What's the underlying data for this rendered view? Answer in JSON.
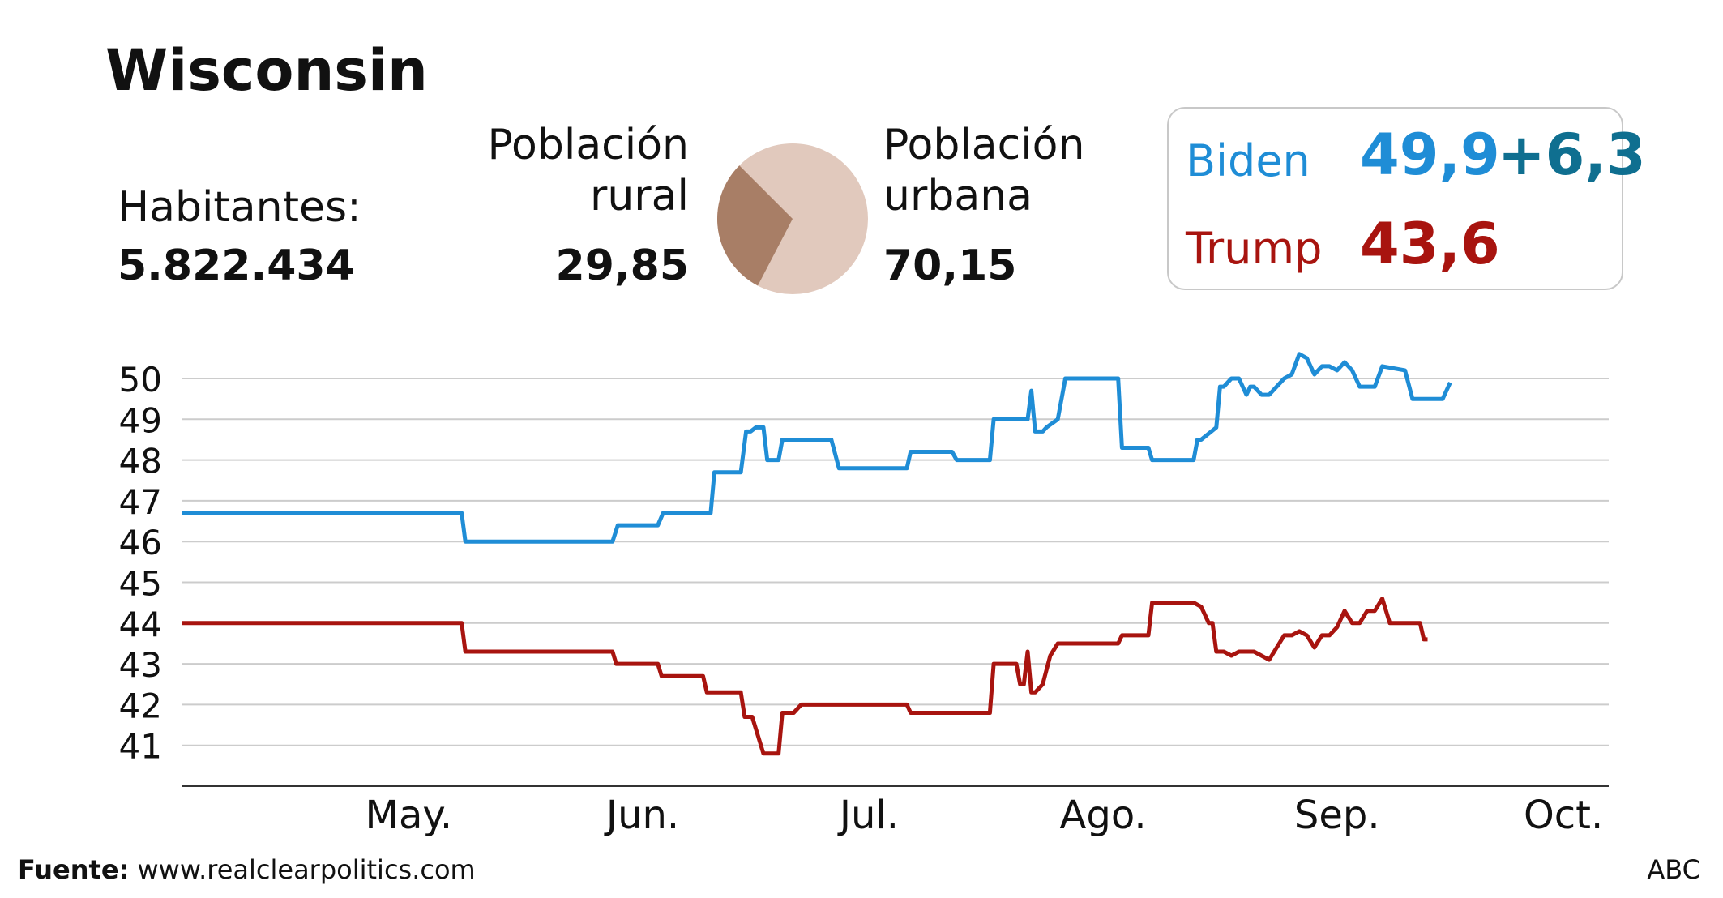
{
  "title": "Wisconsin",
  "habitantes": {
    "label": "Habitantes:",
    "value": "5.822.434"
  },
  "poblacion_rural": {
    "label_line1": "Población",
    "label_line2": "rural",
    "value": "29,85"
  },
  "poblacion_urbana": {
    "label_line1": "Población",
    "label_line2": "urbana",
    "value": "70,15"
  },
  "results": {
    "biden": {
      "name": "Biden",
      "value": "49,9",
      "lead": "+6,3"
    },
    "trump": {
      "name": "Trump",
      "value": "43,6"
    }
  },
  "colors": {
    "biden": "#1f8dd6",
    "trump": "#a8140f",
    "biden_lead": "#0f6f90",
    "pie_rural": "#a87e66",
    "pie_urban": "#e1c9bd",
    "grid": "#cccccc"
  },
  "pie_icon": "pie-chart-rural-urban",
  "chart_data": {
    "type": "line",
    "y_ticks": [
      "41",
      "42",
      "43",
      "44",
      "45",
      "46",
      "47",
      "48",
      "49",
      "50"
    ],
    "ylim": [
      40,
      50.7
    ],
    "x_tick_labels": [
      "May.",
      "Jun.",
      "Jul.",
      "Ago.",
      "Sep.",
      "Oct."
    ],
    "x_tick_days": [
      30,
      61,
      91,
      122,
      153,
      183
    ],
    "xlim": [
      0,
      189
    ],
    "series": [
      {
        "name": "Biden",
        "x": [
          0,
          37,
          37.5,
          57,
          57.7,
          63,
          63.7,
          70,
          70.5,
          74,
          74.7,
          75.3,
          76,
          77,
          77.5,
          79,
          79.5,
          81,
          81.6,
          86,
          87,
          96,
          96.5,
          102,
          102.6,
          107,
          107.5,
          112,
          112.5,
          113,
          113.5,
          114,
          114.5,
          116,
          117,
          117.6,
          124,
          124.5,
          128,
          128.5,
          130,
          130.5,
          134,
          134.5,
          135,
          137,
          137.5,
          138,
          139,
          140,
          141,
          141.5,
          142,
          143,
          144,
          146,
          147,
          148,
          149,
          150,
          151,
          152,
          153,
          154,
          155,
          156,
          157,
          158,
          159,
          162,
          163,
          164,
          167,
          168
        ],
        "y": [
          46.7,
          46.7,
          46,
          46,
          46.4,
          46.4,
          46.7,
          46.7,
          47.7,
          47.7,
          48.7,
          48.7,
          48.8,
          48.8,
          48,
          48,
          48.5,
          48.5,
          48.5,
          48.5,
          47.8,
          47.8,
          48.2,
          48.2,
          48,
          48,
          49,
          49,
          49.7,
          48.7,
          48.7,
          48.7,
          48.8,
          49,
          50,
          50,
          50,
          48.3,
          48.3,
          48,
          48,
          48,
          48,
          48.5,
          48.5,
          48.8,
          49.8,
          49.8,
          50,
          50,
          49.6,
          49.8,
          49.8,
          49.6,
          49.6,
          50,
          50.1,
          50.6,
          50.5,
          50.1,
          50.3,
          50.3,
          50.2,
          50.4,
          50.2,
          49.8,
          49.8,
          49.8,
          50.3,
          50.2,
          49.5,
          49.5,
          49.5,
          49.9
        ]
      },
      {
        "name": "Trump",
        "x": [
          0,
          37,
          37.5,
          57,
          57.5,
          63,
          63.5,
          69,
          69.5,
          74,
          74.5,
          75,
          75.5,
          77,
          77.5,
          79,
          79.5,
          81,
          82,
          96,
          96.5,
          102,
          102.6,
          107,
          107.5,
          110,
          110.5,
          111,
          111.5,
          112,
          112.5,
          113,
          114,
          115,
          116,
          118,
          119,
          120,
          124,
          124.5,
          128,
          128.5,
          131,
          132,
          133,
          134,
          135,
          136,
          136.5,
          137,
          138,
          139,
          140,
          141,
          142,
          144,
          145,
          146,
          147,
          148,
          149,
          150,
          151,
          152,
          153,
          154,
          155,
          156,
          157,
          158,
          159,
          160,
          161,
          161.5,
          164,
          164.5,
          165
        ],
        "y": [
          44,
          44,
          43.3,
          43.3,
          43,
          43,
          42.7,
          42.7,
          42.3,
          42.3,
          41.7,
          41.7,
          41.7,
          40.8,
          40.8,
          40.8,
          41.8,
          41.8,
          42,
          42,
          41.8,
          41.8,
          41.8,
          41.8,
          43,
          43,
          43,
          42.5,
          42.5,
          43.3,
          42.3,
          42.3,
          42.5,
          43.2,
          43.5,
          43.5,
          43.5,
          43.5,
          43.5,
          43.7,
          43.7,
          44.5,
          44.5,
          44.5,
          44.5,
          44.5,
          44.4,
          44,
          44,
          43.3,
          43.3,
          43.2,
          43.3,
          43.3,
          43.3,
          43.1,
          43.4,
          43.7,
          43.7,
          43.8,
          43.7,
          43.4,
          43.7,
          43.7,
          43.9,
          44.3,
          44,
          44,
          44.3,
          44.3,
          44.6,
          44,
          44,
          44,
          44,
          43.6,
          43.6
        ]
      }
    ],
    "grid": true,
    "legend": "none"
  },
  "footer": {
    "source_label": "Fuente:",
    "source_url": "www.realclearpolitics.com",
    "credit": "ABC"
  }
}
